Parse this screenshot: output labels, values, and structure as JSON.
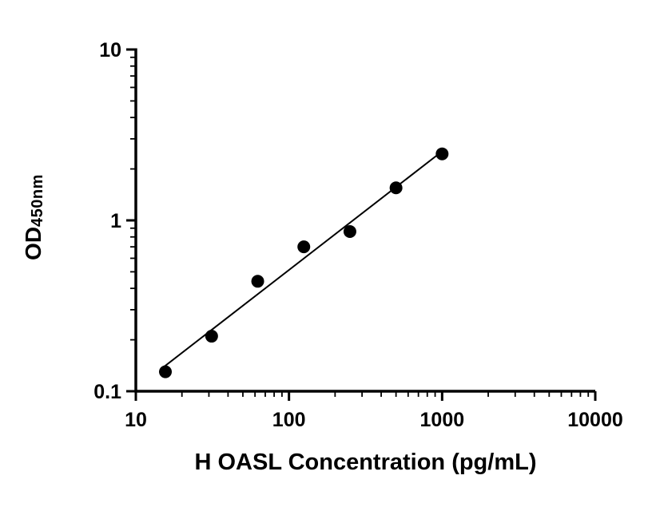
{
  "figure": {
    "background": "#ffffff",
    "axis_color": "#000000",
    "point_color": "#000000",
    "line_color": "#000000"
  },
  "chart_data": {
    "type": "scatter",
    "title": "",
    "xlabel": "H OASL Concentration (pg/mL)",
    "ylabel": "OD",
    "ylabel_subscript": "450nm",
    "xscale": "log",
    "yscale": "log",
    "xlim": [
      10,
      10000
    ],
    "ylim": [
      0.1,
      10
    ],
    "x_major_ticks": [
      10,
      100,
      1000,
      10000
    ],
    "x_tick_labels": [
      "10",
      "100",
      "1000",
      "10000"
    ],
    "y_major_ticks": [
      0.1,
      1,
      10
    ],
    "y_tick_labels": [
      "0.1",
      "1",
      "10"
    ],
    "minor_ticks": true,
    "grid": false,
    "legend": "none",
    "points": {
      "x": [
        15.6,
        31.25,
        62.5,
        125,
        250,
        500,
        1000
      ],
      "y": [
        0.13,
        0.21,
        0.44,
        0.7,
        0.86,
        1.55,
        2.45
      ]
    },
    "trend_line": {
      "type": "linear_fit_log_log",
      "x_start": 14.5,
      "x_end": 1020
    }
  }
}
